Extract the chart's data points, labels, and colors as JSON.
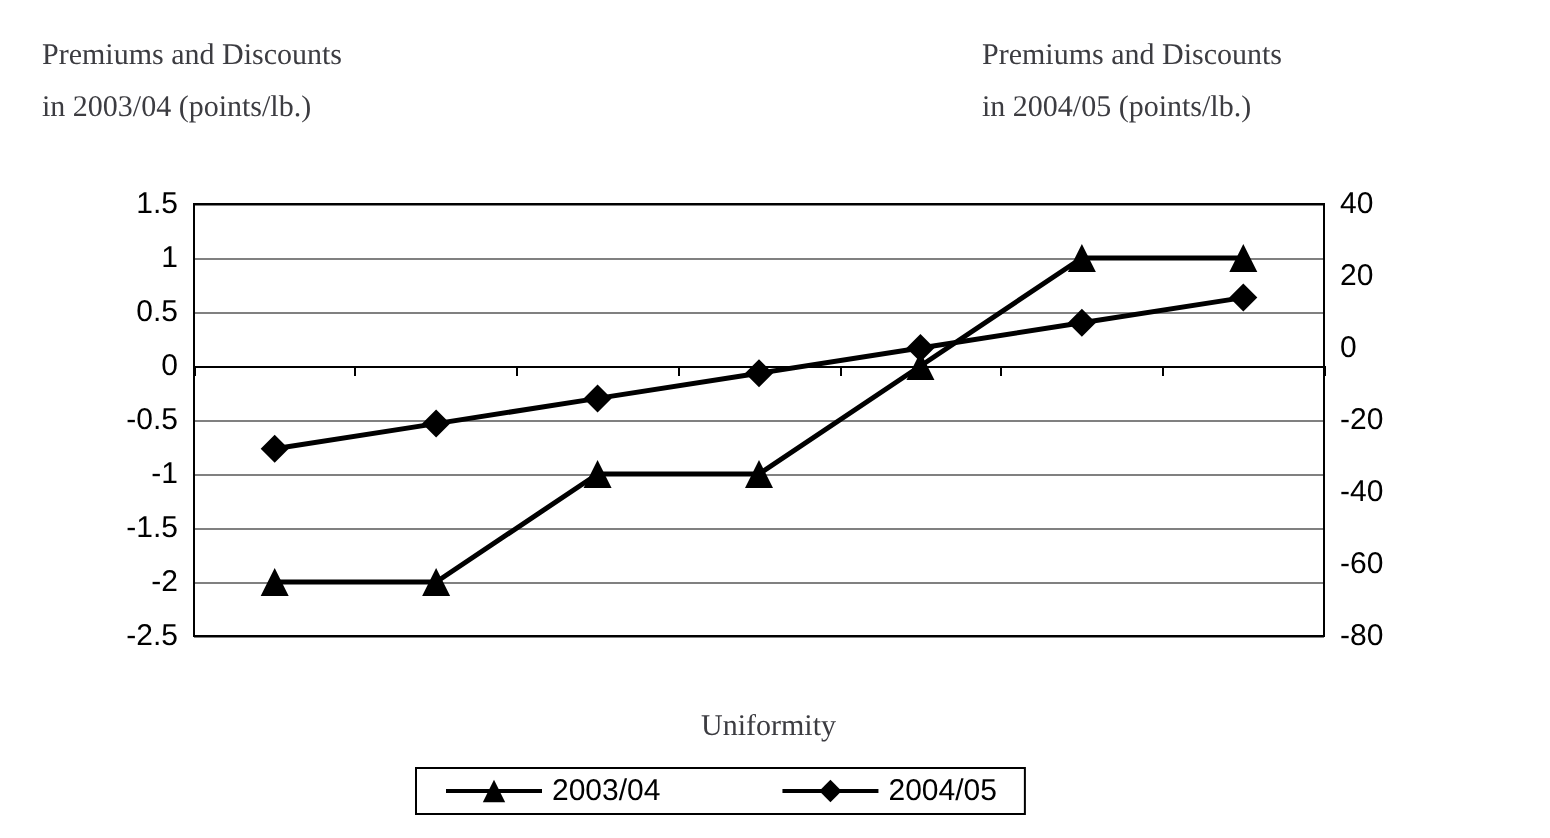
{
  "chart_data": {
    "type": "line",
    "xlabel": "Uniformity",
    "ylabel": "Premiums and Discounts\nin 2003/04 (points/lb.)",
    "y2label": "Premiums and Discounts\nin 2004/05 (points/lb.)",
    "categories": [
      null,
      null,
      null,
      null,
      null,
      null,
      null
    ],
    "series": [
      {
        "name": "2003/04",
        "color": "#000000",
        "marker": "triangle",
        "values": [
          -2,
          -2,
          -1,
          -1,
          0,
          1,
          1
        ]
      },
      {
        "name": "2004/05",
        "color": "#000000",
        "marker": "diamond",
        "axis": "y2",
        "values": [
          -28,
          -21,
          -14,
          -7,
          0,
          7,
          14
        ]
      }
    ],
    "ylim": [
      -2.5,
      1.5
    ],
    "yticks": [
      -2.5,
      -2,
      -1.5,
      -1,
      -0.5,
      0,
      0.5,
      1,
      1.5
    ],
    "y2lim": [
      -80,
      40
    ],
    "y2ticks": [
      -80,
      -60,
      -40,
      -20,
      0,
      20,
      40
    ],
    "grid": "y",
    "legend": "bottom",
    "line_style": "solid"
  }
}
